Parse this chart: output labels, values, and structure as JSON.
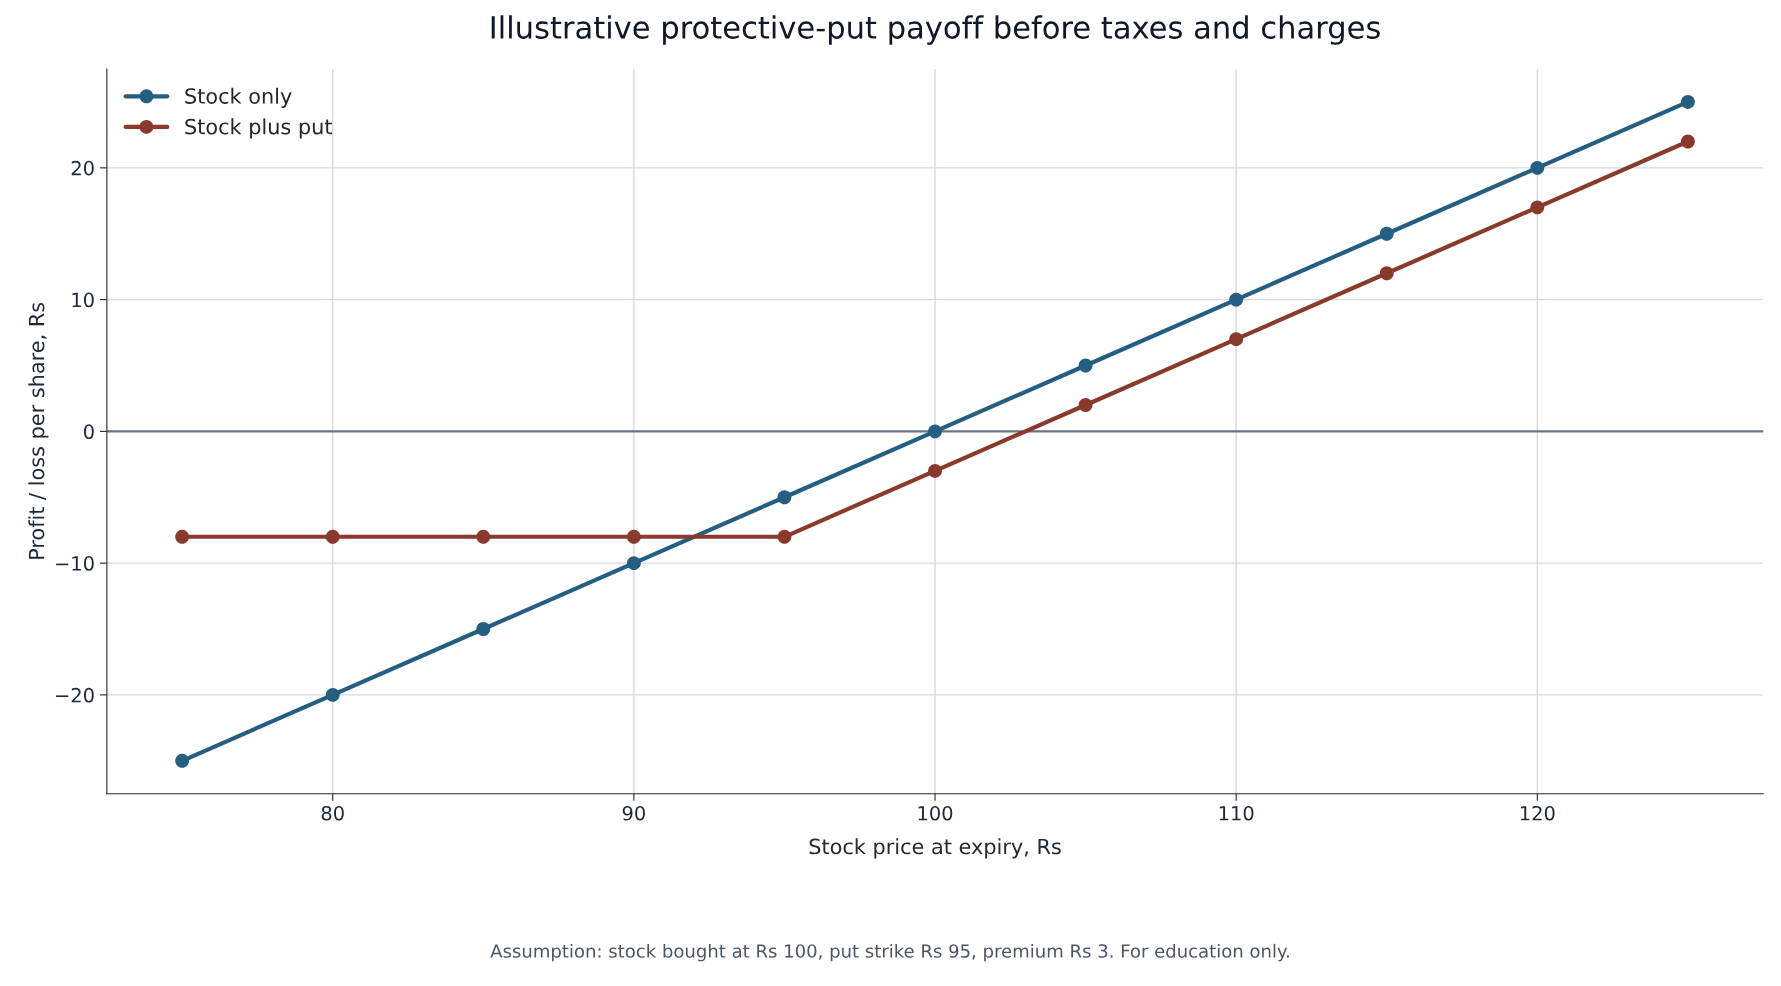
{
  "chart_data": {
    "type": "line",
    "title": "Illustrative protective-put payoff before taxes and charges",
    "xlabel": "Stock price at expiry, Rs",
    "ylabel": "Profit / loss per share, Rs",
    "x": [
      75,
      80,
      85,
      90,
      95,
      100,
      105,
      110,
      115,
      120,
      125
    ],
    "series": [
      {
        "name": "Stock only",
        "color": "#245e80",
        "values": [
          -25,
          -20,
          -15,
          -10,
          -5,
          0,
          5,
          10,
          15,
          20,
          25
        ]
      },
      {
        "name": "Stock plus put",
        "color": "#8a3a2a",
        "values": [
          -8,
          -8,
          -8,
          -8,
          -8,
          -3,
          2,
          7,
          12,
          17,
          22
        ]
      }
    ],
    "xlim": [
      72.5,
      127.5
    ],
    "xticks": [
      80,
      90,
      100,
      110,
      120
    ],
    "ylim": [
      -27.5,
      27.5
    ],
    "yticks": [
      {
        "value": -20,
        "label": "−20"
      },
      {
        "value": -10,
        "label": "−10"
      },
      0,
      10,
      20
    ],
    "ref_lines": [
      {
        "axis": "y",
        "value": 0,
        "color": "#6b7280"
      }
    ],
    "grid": true,
    "legend": "top left",
    "marker": "circle",
    "line_style": "solid",
    "annotations": [
      "Assumption: stock bought at Rs 100, put strike Rs 95, premium Rs 3. For education only."
    ]
  }
}
